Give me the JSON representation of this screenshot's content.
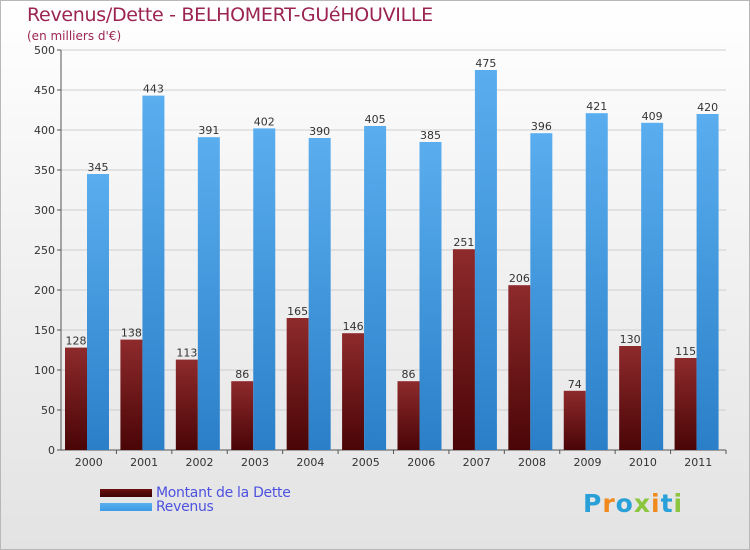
{
  "header": {
    "title": "Revenus/Dette - BELHOMERT-GUéHOUVILLE",
    "subtitle": "(en milliers d'€)"
  },
  "legend": {
    "items": [
      {
        "label": "Montant de la Dette",
        "color": "#6b0f10"
      },
      {
        "label": "Revenus",
        "color": "#3d9be6"
      }
    ]
  },
  "logo": {
    "letters": [
      "P",
      "r",
      "o",
      "x",
      "i",
      "t",
      "i"
    ],
    "colors": [
      "#2aa0d8",
      "#f18a1c",
      "#2aa0d8",
      "#8cc63f",
      "#f18a1c",
      "#2aa0d8",
      "#8cc63f"
    ]
  },
  "chart_data": {
    "type": "bar",
    "title": "Revenus/Dette - BELHOMERT-GUéHOUVILLE",
    "ylabel": "(en milliers d'€)",
    "xlabel": "",
    "ylim": [
      0,
      500
    ],
    "yticks": [
      0,
      50,
      100,
      150,
      200,
      250,
      300,
      350,
      400,
      450,
      500
    ],
    "grid": true,
    "categories": [
      "2000",
      "2001",
      "2002",
      "2003",
      "2004",
      "2005",
      "2006",
      "2007",
      "2008",
      "2009",
      "2010",
      "2011"
    ],
    "series": [
      {
        "name": "Montant de la Dette",
        "color": "#6b0f10",
        "values": [
          128,
          138,
          113,
          86,
          165,
          146,
          86,
          251,
          206,
          74,
          130,
          115
        ]
      },
      {
        "name": "Revenus",
        "color": "#3d9be6",
        "values": [
          345,
          443,
          391,
          402,
          390,
          405,
          385,
          475,
          396,
          421,
          409,
          420
        ]
      }
    ]
  }
}
